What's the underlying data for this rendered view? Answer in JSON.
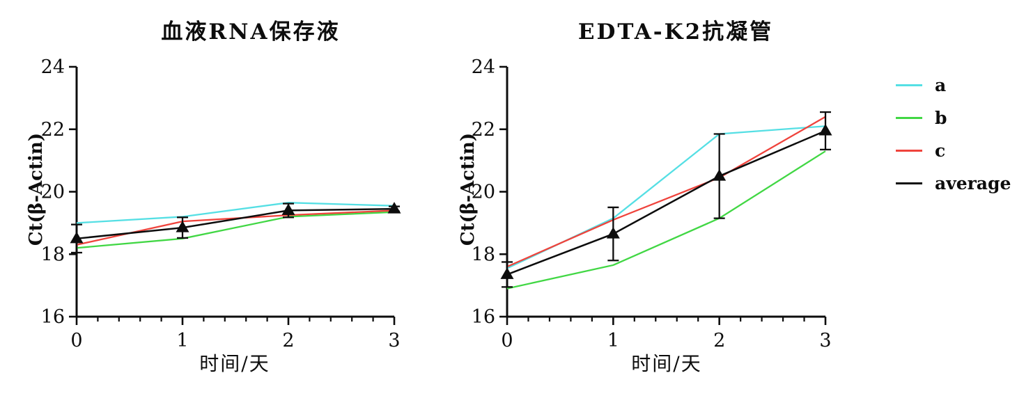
{
  "figure": {
    "background": "#ffffff",
    "axis_color": "#0d0d0d"
  },
  "legend": {
    "position": "right",
    "items": [
      {
        "label": "a",
        "color": "#55dfe4",
        "swatch": "line"
      },
      {
        "label": "b",
        "color": "#41d744",
        "swatch": "line"
      },
      {
        "label": "c",
        "color": "#ef433c",
        "swatch": "line"
      },
      {
        "label": "average",
        "color": "#0d0d0d",
        "swatch": "line"
      }
    ]
  },
  "chart_data": [
    {
      "type": "line",
      "title": "血液RNA保存液",
      "xlabel": "时间/天",
      "ylabel": "Ct(β-Actin)",
      "xlim": [
        0,
        3
      ],
      "ylim": [
        16,
        24
      ],
      "x_ticks": [
        0,
        1,
        2,
        3
      ],
      "y_ticks": [
        16,
        18,
        20,
        22,
        24
      ],
      "x_minor_step": 0.2,
      "grid": false,
      "x": [
        0,
        1,
        2,
        3
      ],
      "series": [
        {
          "name": "a",
          "color": "#55dfe4",
          "values": [
            19.0,
            19.2,
            19.65,
            19.55
          ]
        },
        {
          "name": "b",
          "color": "#41d744",
          "values": [
            18.2,
            18.5,
            19.2,
            19.35
          ]
        },
        {
          "name": "c",
          "color": "#ef433c",
          "values": [
            18.3,
            19.05,
            19.25,
            19.4
          ]
        },
        {
          "name": "average",
          "color": "#0d0d0d",
          "marker": "filled-triangle",
          "values": [
            18.5,
            18.85,
            19.4,
            19.45
          ],
          "errors": [
            0.45,
            0.33,
            0.22,
            0.08
          ]
        }
      ]
    },
    {
      "type": "line",
      "title": "EDTA-K2抗凝管",
      "xlabel": "时间/天",
      "ylabel": "Ct(β-Actin)",
      "xlim": [
        0,
        3
      ],
      "ylim": [
        16,
        24
      ],
      "x_ticks": [
        0,
        1,
        2,
        3
      ],
      "y_ticks": [
        16,
        18,
        20,
        22,
        24
      ],
      "x_minor_step": 0.2,
      "grid": false,
      "x": [
        0,
        1,
        2,
        3
      ],
      "series": [
        {
          "name": "a",
          "color": "#55dfe4",
          "values": [
            17.55,
            19.15,
            21.85,
            22.1
          ]
        },
        {
          "name": "b",
          "color": "#41d744",
          "values": [
            16.9,
            17.65,
            19.15,
            21.3
          ]
        },
        {
          "name": "c",
          "color": "#ef433c",
          "values": [
            17.6,
            19.1,
            20.45,
            22.4
          ]
        },
        {
          "name": "average",
          "color": "#0d0d0d",
          "marker": "filled-triangle",
          "values": [
            17.35,
            18.65,
            20.5,
            21.95
          ],
          "errors": [
            0.4,
            0.85,
            1.35,
            0.6
          ]
        }
      ]
    }
  ]
}
